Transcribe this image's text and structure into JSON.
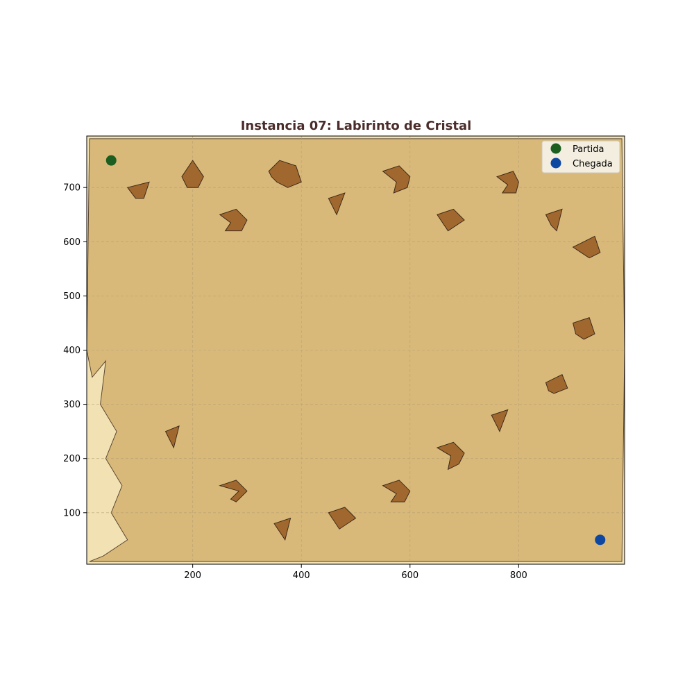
{
  "chart_data": {
    "type": "scatter",
    "title": "Instancia 07: Labirinto de Cristal",
    "xlabel": "",
    "ylabel": "",
    "xlim": [
      5,
      995
    ],
    "ylim": [
      5,
      795
    ],
    "xticks": [
      200,
      400,
      600,
      800
    ],
    "yticks": [
      100,
      200,
      300,
      400,
      500,
      600,
      700
    ],
    "grid": true,
    "legend_position": "top-right",
    "colors": {
      "title": "#4a2c2a",
      "region_fill": "#d8b97a",
      "region_stroke": "#5a4632",
      "outside_fill": "#f2e2b3",
      "obstacle_fill": "#a0682f",
      "obstacle_stroke": "#3e2a18",
      "grid": "#b59e72",
      "start": "#1b5e20",
      "goal": "#0d47a1"
    },
    "region": [
      [
        10,
        790
      ],
      [
        990,
        790
      ],
      [
        995,
        400
      ],
      [
        990,
        10
      ],
      [
        10,
        10
      ],
      [
        35,
        20
      ],
      [
        80,
        50
      ],
      [
        50,
        100
      ],
      [
        70,
        150
      ],
      [
        40,
        200
      ],
      [
        60,
        250
      ],
      [
        30,
        300
      ],
      [
        40,
        380
      ],
      [
        15,
        350
      ],
      [
        5,
        400
      ]
    ],
    "obstacles": [
      [
        [
          80,
          700
        ],
        [
          120,
          710
        ],
        [
          110,
          680
        ],
        [
          95,
          680
        ]
      ],
      [
        [
          180,
          720
        ],
        [
          200,
          750
        ],
        [
          220,
          720
        ],
        [
          210,
          700
        ],
        [
          190,
          700
        ]
      ],
      [
        [
          340,
          730
        ],
        [
          360,
          750
        ],
        [
          390,
          740
        ],
        [
          400,
          710
        ],
        [
          375,
          700
        ],
        [
          355,
          710
        ],
        [
          345,
          720
        ]
      ],
      [
        [
          550,
          730
        ],
        [
          580,
          740
        ],
        [
          600,
          720
        ],
        [
          595,
          700
        ],
        [
          570,
          690
        ],
        [
          575,
          710
        ]
      ],
      [
        [
          760,
          720
        ],
        [
          790,
          730
        ],
        [
          800,
          710
        ],
        [
          795,
          690
        ],
        [
          770,
          690
        ],
        [
          780,
          705
        ]
      ],
      [
        [
          250,
          650
        ],
        [
          280,
          660
        ],
        [
          300,
          640
        ],
        [
          290,
          620
        ],
        [
          260,
          620
        ],
        [
          270,
          635
        ]
      ],
      [
        [
          450,
          680
        ],
        [
          480,
          690
        ],
        [
          465,
          650
        ]
      ],
      [
        [
          650,
          650
        ],
        [
          680,
          660
        ],
        [
          700,
          640
        ],
        [
          670,
          620
        ]
      ],
      [
        [
          850,
          650
        ],
        [
          880,
          660
        ],
        [
          870,
          620
        ],
        [
          860,
          630
        ]
      ],
      [
        [
          900,
          590
        ],
        [
          920,
          600
        ],
        [
          940,
          610
        ],
        [
          950,
          580
        ],
        [
          930,
          570
        ],
        [
          915,
          580
        ]
      ],
      [
        [
          900,
          450
        ],
        [
          930,
          460
        ],
        [
          940,
          430
        ],
        [
          920,
          420
        ],
        [
          905,
          430
        ]
      ],
      [
        [
          850,
          340
        ],
        [
          880,
          355
        ],
        [
          890,
          330
        ],
        [
          865,
          320
        ],
        [
          855,
          325
        ]
      ],
      [
        [
          750,
          280
        ],
        [
          780,
          290
        ],
        [
          765,
          250
        ]
      ],
      [
        [
          650,
          220
        ],
        [
          680,
          230
        ],
        [
          700,
          210
        ],
        [
          690,
          190
        ],
        [
          670,
          180
        ],
        [
          675,
          205
        ]
      ],
      [
        [
          150,
          250
        ],
        [
          175,
          260
        ],
        [
          165,
          220
        ]
      ],
      [
        [
          250,
          150
        ],
        [
          280,
          160
        ],
        [
          300,
          140
        ],
        [
          280,
          120
        ],
        [
          270,
          125
        ],
        [
          285,
          140
        ]
      ],
      [
        [
          350,
          80
        ],
        [
          380,
          90
        ],
        [
          370,
          50
        ],
        [
          360,
          65
        ]
      ],
      [
        [
          450,
          100
        ],
        [
          480,
          110
        ],
        [
          500,
          90
        ],
        [
          470,
          70
        ]
      ],
      [
        [
          550,
          150
        ],
        [
          580,
          160
        ],
        [
          600,
          140
        ],
        [
          590,
          120
        ],
        [
          565,
          120
        ],
        [
          575,
          135
        ]
      ]
    ],
    "series": [
      {
        "name": "Partida",
        "x": [
          50
        ],
        "y": [
          750
        ]
      },
      {
        "name": "Chegada",
        "x": [
          950
        ],
        "y": [
          50
        ]
      }
    ]
  }
}
